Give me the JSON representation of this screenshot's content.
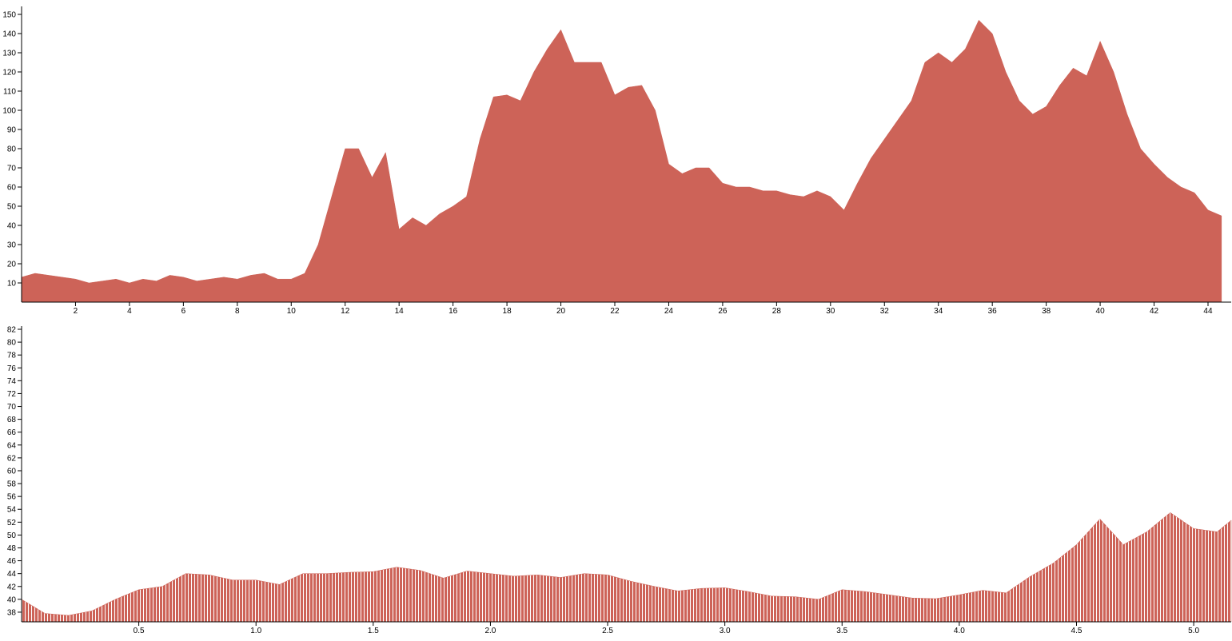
{
  "chart_data": [
    {
      "type": "area",
      "color": "#cd6358",
      "striped": false,
      "x": [
        0,
        0.5,
        1,
        1.5,
        2,
        2.5,
        3,
        3.5,
        4,
        4.5,
        5,
        5.5,
        6,
        6.5,
        7,
        7.5,
        8,
        8.5,
        9,
        9.5,
        10,
        10.5,
        11,
        11.5,
        12,
        12.5,
        13,
        13.5,
        14,
        14.5,
        15,
        15.5,
        16,
        16.5,
        17,
        17.5,
        18,
        18.5,
        19,
        19.5,
        20,
        20.5,
        21,
        21.5,
        22,
        22.5,
        23,
        23.5,
        24,
        24.5,
        25,
        25.5,
        26,
        26.5,
        27,
        27.5,
        28,
        28.5,
        29,
        29.5,
        30,
        30.5,
        31,
        31.5,
        32,
        32.5,
        33,
        33.5,
        34,
        34.5,
        35,
        35.5,
        36,
        36.5,
        37,
        37.5,
        38,
        38.5,
        39,
        39.5,
        40,
        40.5,
        41,
        41.5,
        42,
        42.5,
        43,
        43.5,
        44,
        44.5
      ],
      "values": [
        13,
        15,
        14,
        13,
        12,
        10,
        11,
        12,
        10,
        12,
        11,
        14,
        13,
        11,
        12,
        13,
        12,
        14,
        15,
        12,
        12,
        15,
        30,
        55,
        80,
        80,
        65,
        78,
        38,
        44,
        40,
        46,
        50,
        55,
        85,
        107,
        108,
        105,
        120,
        132,
        142,
        125,
        125,
        125,
        108,
        112,
        113,
        100,
        72,
        67,
        70,
        70,
        62,
        60,
        60,
        58,
        58,
        56,
        55,
        58,
        55,
        48,
        62,
        75,
        85,
        95,
        105,
        125,
        130,
        125,
        132,
        147,
        140,
        120,
        105,
        98,
        102,
        113,
        122,
        118,
        136,
        120,
        98,
        80,
        72,
        65,
        60,
        57,
        48,
        45
      ],
      "xlim": [
        0,
        44.86
      ],
      "ylim": [
        0,
        152.5
      ],
      "xticks": [
        2,
        4,
        6,
        8,
        10,
        12,
        14,
        16,
        18,
        20,
        22,
        24,
        26,
        28,
        30,
        32,
        34,
        36,
        38,
        40,
        42,
        44
      ],
      "yticks": [
        10,
        20,
        30,
        40,
        50,
        60,
        70,
        80,
        90,
        100,
        110,
        120,
        130,
        140,
        150
      ]
    },
    {
      "type": "area",
      "color": "#cd6358",
      "striped": true,
      "x": [
        0,
        0.1,
        0.2,
        0.3,
        0.4,
        0.5,
        0.6,
        0.7,
        0.8,
        0.9,
        1.0,
        1.1,
        1.2,
        1.3,
        1.4,
        1.5,
        1.6,
        1.7,
        1.8,
        1.9,
        2.0,
        2.1,
        2.2,
        2.3,
        2.4,
        2.5,
        2.6,
        2.7,
        2.8,
        2.9,
        3.0,
        3.1,
        3.2,
        3.3,
        3.4,
        3.5,
        3.6,
        3.7,
        3.8,
        3.9,
        4.0,
        4.1,
        4.2,
        4.3,
        4.4,
        4.5,
        4.6,
        4.7,
        4.8,
        4.9,
        5.0,
        5.1,
        5.16
      ],
      "values": [
        40,
        37.8,
        37.5,
        38.2,
        40,
        41.5,
        42,
        44,
        43.8,
        43,
        43,
        42.3,
        44,
        44,
        44.2,
        44.3,
        45,
        44.5,
        43.3,
        44.4,
        44,
        43.6,
        43.8,
        43.4,
        44,
        43.8,
        42.8,
        42,
        41.3,
        41.7,
        41.8,
        41.2,
        40.5,
        40.4,
        40,
        41.5,
        41.2,
        40.7,
        40.2,
        40.1,
        40.7,
        41.4,
        41,
        43.5,
        45.6,
        48.5,
        52.5,
        48.5,
        50.5,
        53.5,
        51,
        50.5,
        52.3
      ],
      "xlim": [
        0,
        5.16
      ],
      "ylim": [
        36.5,
        82
      ],
      "xticks": [
        0.5,
        {
          "value": 1,
          "label": "1.0"
        },
        1.5,
        {
          "value": 2,
          "label": "2.0"
        },
        2.5,
        {
          "value": 3,
          "label": "3.0"
        },
        3.5,
        {
          "value": 4,
          "label": "4.0"
        },
        4.5,
        {
          "value": 5,
          "label": "5.0"
        }
      ],
      "yticks": [
        38,
        40,
        42,
        44,
        46,
        48,
        50,
        52,
        54,
        56,
        58,
        60,
        62,
        64,
        66,
        68,
        70,
        72,
        74,
        76,
        78,
        80,
        82
      ]
    }
  ]
}
